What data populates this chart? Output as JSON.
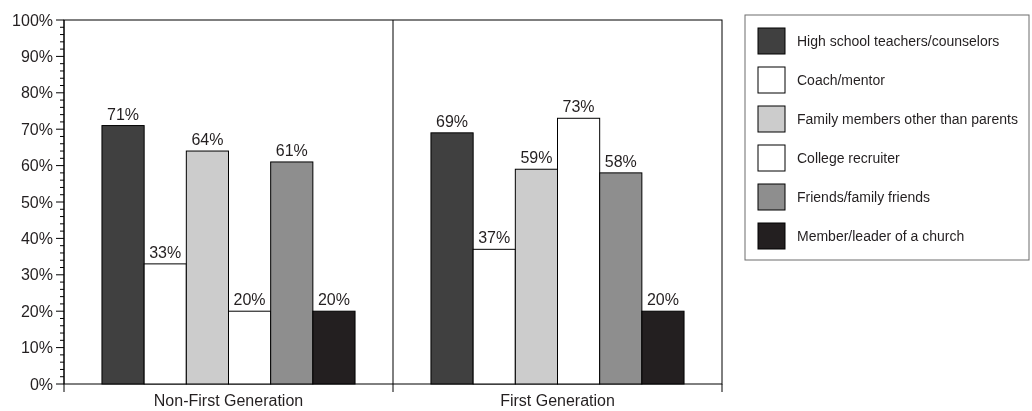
{
  "chart_data": {
    "type": "bar",
    "categories": [
      "Non-First Generation",
      "First Generation"
    ],
    "series": [
      {
        "name": "High school teachers/counselors",
        "color": "#404040",
        "values": [
          71,
          69
        ],
        "value_labels": [
          "71%",
          "69%"
        ]
      },
      {
        "name": "Coach/mentor",
        "color": "#ffffff",
        "values": [
          33,
          37
        ],
        "value_labels": [
          "33%",
          "37%"
        ]
      },
      {
        "name": "Family members other than parents",
        "color": "#cccccc",
        "values": [
          64,
          59
        ],
        "value_labels": [
          "64%",
          "59%"
        ]
      },
      {
        "name": "College recruiter",
        "color": "#ffffff",
        "values": [
          20,
          73
        ],
        "value_labels": [
          "20%",
          "73%"
        ]
      },
      {
        "name": "Friends/family friends",
        "color": "#8e8e8e",
        "values": [
          61,
          58
        ],
        "value_labels": [
          "61%",
          "58%"
        ]
      },
      {
        "name": "Member/leader of a church",
        "color": "#231f20",
        "values": [
          20,
          20
        ],
        "value_labels": [
          "20%",
          "20%"
        ]
      }
    ],
    "ylim": [
      0,
      100
    ],
    "yticks": [
      {
        "value": 0,
        "label": "0%"
      },
      {
        "value": 2,
        "label": null
      },
      {
        "value": 4,
        "label": null
      },
      {
        "value": 6,
        "label": null
      },
      {
        "value": 8,
        "label": null
      },
      {
        "value": 10,
        "label": "10%"
      },
      {
        "value": 12,
        "label": null
      },
      {
        "value": 14,
        "label": null
      },
      {
        "value": 16,
        "label": null
      },
      {
        "value": 18,
        "label": null
      },
      {
        "value": 20,
        "label": "20%"
      },
      {
        "value": 22,
        "label": null
      },
      {
        "value": 24,
        "label": null
      },
      {
        "value": 26,
        "label": null
      },
      {
        "value": 28,
        "label": null
      },
      {
        "value": 30,
        "label": "30%"
      },
      {
        "value": 32,
        "label": null
      },
      {
        "value": 34,
        "label": null
      },
      {
        "value": 36,
        "label": null
      },
      {
        "value": 38,
        "label": null
      },
      {
        "value": 40,
        "label": "40%"
      },
      {
        "value": 42,
        "label": null
      },
      {
        "value": 44,
        "label": null
      },
      {
        "value": 46,
        "label": null
      },
      {
        "value": 48,
        "label": null
      },
      {
        "value": 50,
        "label": "50%"
      },
      {
        "value": 52,
        "label": null
      },
      {
        "value": 54,
        "label": null
      },
      {
        "value": 56,
        "label": null
      },
      {
        "value": 58,
        "label": null
      },
      {
        "value": 60,
        "label": "60%"
      },
      {
        "value": 62,
        "label": null
      },
      {
        "value": 64,
        "label": null
      },
      {
        "value": 66,
        "label": null
      },
      {
        "value": 68,
        "label": null
      },
      {
        "value": 70,
        "label": "70%"
      },
      {
        "value": 72,
        "label": null
      },
      {
        "value": 74,
        "label": null
      },
      {
        "value": 76,
        "label": null
      },
      {
        "value": 78,
        "label": null
      },
      {
        "value": 80,
        "label": "80%"
      },
      {
        "value": 82,
        "label": null
      },
      {
        "value": 84,
        "label": null
      },
      {
        "value": 86,
        "label": null
      },
      {
        "value": 88,
        "label": null
      },
      {
        "value": 90,
        "label": "90%"
      },
      {
        "value": 92,
        "label": null
      },
      {
        "value": 94,
        "label": null
      },
      {
        "value": 96,
        "label": null
      },
      {
        "value": 98,
        "label": null
      },
      {
        "value": 100,
        "label": "100%"
      }
    ],
    "legend": "right"
  }
}
